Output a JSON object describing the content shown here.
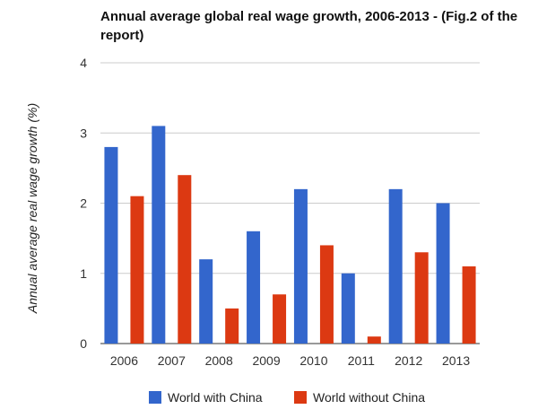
{
  "chart_data": {
    "type": "bar",
    "title": "Annual average global real wage growth, 2006-2013 - (Fig.2 of the report)",
    "xlabel": "",
    "ylabel": "Annual average real wage growth (%)",
    "categories": [
      "2006",
      "2007",
      "2008",
      "2009",
      "2010",
      "2011",
      "2012",
      "2013"
    ],
    "series": [
      {
        "name": "World with China",
        "color": "#3366cc",
        "values": [
          2.8,
          3.1,
          1.2,
          1.6,
          2.2,
          1.0,
          2.2,
          2.0
        ]
      },
      {
        "name": "World without China",
        "color": "#dc3912",
        "values": [
          2.1,
          2.4,
          0.5,
          0.7,
          1.4,
          0.1,
          1.3,
          1.1
        ]
      }
    ],
    "ylim": [
      0,
      4
    ],
    "yticks": [
      "0",
      "1",
      "2",
      "3",
      "4"
    ],
    "grid": true,
    "legend": "bottom"
  }
}
